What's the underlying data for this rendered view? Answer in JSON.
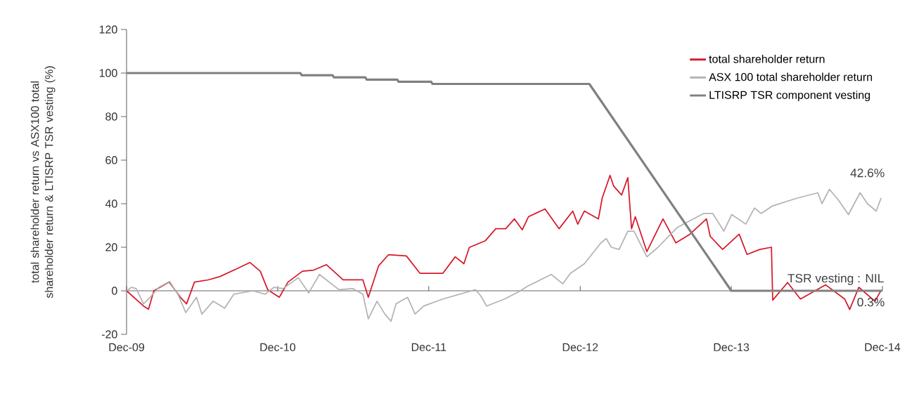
{
  "chart_data": {
    "type": "line",
    "ylabel": "total shareholder return vs ASX100 total shareholder return & LTISRP TSR vesting (%)",
    "xlim": [
      "2009-12-31",
      "2014-12-31"
    ],
    "xticks": [
      {
        "value": "2009-12-31",
        "label": "Dec-09"
      },
      {
        "value": "2010-12-31",
        "label": "Dec-10"
      },
      {
        "value": "2011-12-31",
        "label": "Dec-11"
      },
      {
        "value": "2012-12-31",
        "label": "Dec-12"
      },
      {
        "value": "2013-12-31",
        "label": "Dec-13"
      },
      {
        "value": "2014-12-31",
        "label": "Dec-14"
      }
    ],
    "ylim": [
      -20,
      120
    ],
    "yticks": [
      -20,
      0,
      20,
      40,
      60,
      80,
      100,
      120
    ],
    "legend": "top right",
    "series": [
      {
        "name": "total shareholder return",
        "color": "#d7182a",
        "x": [
          "2009-12-31",
          "2010-02-10",
          "2010-02-22",
          "2010-03-07",
          "2010-04-13",
          "2010-05-10",
          "2010-05-25",
          "2010-06-13",
          "2010-07-16",
          "2010-08-13",
          "2010-09-22",
          "2010-10-25",
          "2010-11-19",
          "2010-12-07",
          "2011-01-04",
          "2011-01-25",
          "2011-03-01",
          "2011-03-28",
          "2011-04-28",
          "2011-06-07",
          "2011-07-01",
          "2011-07-25",
          "2011-08-07",
          "2011-09-01",
          "2011-09-25",
          "2011-11-07",
          "2011-12-10",
          "2012-02-03",
          "2012-03-04",
          "2012-03-25",
          "2012-04-07",
          "2012-05-16",
          "2012-06-10",
          "2012-07-04",
          "2012-07-25",
          "2012-08-13",
          "2012-08-28",
          "2012-10-07",
          "2012-11-10",
          "2012-12-13",
          "2012-12-25",
          "2013-01-10",
          "2013-02-13",
          "2013-02-22",
          "2013-03-13",
          "2013-03-22",
          "2013-04-10",
          "2013-04-25",
          "2013-05-04",
          "2013-05-13",
          "2013-06-10",
          "2013-07-19",
          "2013-08-19",
          "2013-09-22",
          "2013-11-01",
          "2013-11-10",
          "2013-12-10",
          "2014-01-19",
          "2014-02-07",
          "2014-03-10",
          "2014-04-07",
          "2014-04-10",
          "2014-05-16",
          "2014-06-16",
          "2014-08-16",
          "2014-10-01",
          "2014-10-13",
          "2014-11-04",
          "2014-12-13",
          "2014-12-28"
        ],
        "values": [
          0,
          -7,
          -8.5,
          0,
          4,
          -3,
          -6,
          4,
          5,
          6.5,
          10,
          13,
          9,
          0.5,
          -3,
          4,
          9,
          9.5,
          12,
          5,
          5,
          5,
          -3,
          11.5,
          16.6,
          16,
          8,
          8,
          15.6,
          12.4,
          19.9,
          23,
          28.5,
          28.5,
          33,
          28,
          34,
          37.6,
          28.5,
          36.6,
          30.6,
          36.6,
          33,
          42.5,
          53,
          48,
          44,
          52,
          28.5,
          34,
          18,
          33,
          22,
          26,
          33,
          25,
          19,
          26,
          16.7,
          19,
          20,
          -4.3,
          3.8,
          -3.8,
          2.7,
          -3.8,
          -8.6,
          1.6,
          -4.8,
          0.3
        ]
      },
      {
        "name": "ASX 100 total shareholder return",
        "color": "#b3b3b3",
        "x": [
          "2009-12-31",
          "2010-01-12",
          "2010-01-23",
          "2010-02-10",
          "2010-02-26",
          "2010-03-19",
          "2010-04-14",
          "2010-05-04",
          "2010-05-23",
          "2010-06-18",
          "2010-07-01",
          "2010-07-28",
          "2010-08-25",
          "2010-09-16",
          "2010-11-01",
          "2010-12-01",
          "2010-12-22",
          "2011-01-13",
          "2011-02-19",
          "2011-03-16",
          "2011-04-11",
          "2011-05-28",
          "2011-07-01",
          "2011-07-25",
          "2011-08-07",
          "2011-08-28",
          "2011-09-16",
          "2011-10-01",
          "2011-10-13",
          "2011-11-10",
          "2011-11-28",
          "2011-12-19",
          "2012-02-03",
          "2012-04-22",
          "2012-05-04",
          "2012-05-19",
          "2012-07-01",
          "2012-08-04",
          "2012-08-25",
          "2012-10-22",
          "2012-11-19",
          "2012-12-07",
          "2013-01-10",
          "2013-02-19",
          "2013-03-04",
          "2013-03-16",
          "2013-04-04",
          "2013-04-25",
          "2013-05-10",
          "2013-06-10",
          "2013-07-07",
          "2013-08-22",
          "2013-10-25",
          "2013-11-16",
          "2013-12-13",
          "2014-01-01",
          "2014-02-04",
          "2014-02-25",
          "2014-03-13",
          "2014-04-10",
          "2014-06-07",
          "2014-07-28",
          "2014-08-07",
          "2014-08-25",
          "2014-09-16",
          "2014-10-10",
          "2014-11-07",
          "2014-11-25",
          "2014-12-16",
          "2014-12-28"
        ],
        "values": [
          0,
          1.6,
          1,
          -6,
          -3,
          1.6,
          4.3,
          -1.6,
          -10,
          -3,
          -10.7,
          -4.8,
          -8,
          -1.6,
          0,
          -1.6,
          1.6,
          1,
          6,
          -1,
          7.5,
          0.5,
          1,
          -1.6,
          -12.9,
          -4.8,
          -10.7,
          -14,
          -6,
          -3,
          -10.7,
          -7,
          -3.8,
          0.5,
          -2.2,
          -7,
          -3.8,
          -0.5,
          2,
          7.5,
          3.2,
          8,
          12.4,
          22,
          24,
          20,
          19,
          27.4,
          27.4,
          15.6,
          20,
          29,
          35.5,
          35.5,
          27.4,
          35,
          30.6,
          38,
          35.5,
          39,
          42.5,
          45,
          40,
          46.6,
          41.6,
          35,
          45,
          40,
          36.6,
          42.6
        ]
      },
      {
        "name": "LTISRP TSR component vesting",
        "color": "#808080",
        "x": [
          "2009-12-31",
          "2011-02-24",
          "2011-02-27",
          "2011-05-13",
          "2011-05-16",
          "2011-07-31",
          "2011-08-03",
          "2011-10-16",
          "2011-10-19",
          "2012-01-06",
          "2012-01-09",
          "2013-01-22",
          "2013-12-31",
          "2014-12-31"
        ],
        "values": [
          100,
          100,
          99,
          99,
          98,
          98,
          97,
          97,
          96,
          96,
          95,
          95,
          0,
          0
        ]
      }
    ],
    "annotations": [
      {
        "text": "42.6%",
        "x": "2014-12-28",
        "y": 42.6
      },
      {
        "text": "TSR vesting : NIL",
        "x": "2014-12-31",
        "y": 0
      },
      {
        "text": "0.3%",
        "x": "2014-12-28",
        "y": 0.3
      }
    ]
  }
}
